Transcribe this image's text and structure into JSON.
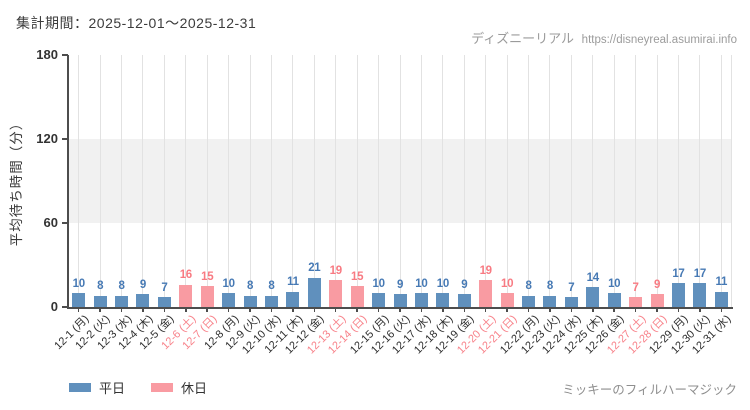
{
  "header": {
    "title": "集計期間：2025-12-01～2025-12-31",
    "watermark_site": "ディズニーリアル",
    "watermark_url": "https://disneyreal.asumirai.info"
  },
  "chart_data": {
    "type": "bar",
    "title": "",
    "xlabel": "",
    "ylabel": "平均待ち時間（分）",
    "ylim": [
      0,
      180
    ],
    "yticks": [
      0,
      60,
      120,
      180
    ],
    "shaded_band": [
      60,
      120
    ],
    "grid": "vertical-per-category",
    "legend_position": "bottom-left",
    "categories": [
      "12-1 (月)",
      "12-2 (火)",
      "12-3 (水)",
      "12-4 (木)",
      "12-5 (金)",
      "12-6 (土)",
      "12-7 (日)",
      "12-8 (月)",
      "12-9 (火)",
      "12-10 (水)",
      "12-11 (木)",
      "12-12 (金)",
      "12-13 (土)",
      "12-14 (日)",
      "12-15 (月)",
      "12-16 (火)",
      "12-17 (水)",
      "12-18 (木)",
      "12-19 (金)",
      "12-20 (土)",
      "12-21 (日)",
      "12-22 (月)",
      "12-23 (火)",
      "12-24 (水)",
      "12-25 (木)",
      "12-26 (金)",
      "12-27 (土)",
      "12-28 (日)",
      "12-29 (月)",
      "12-30 (火)",
      "12-31 (水)"
    ],
    "values": [
      10,
      8,
      8,
      9,
      7,
      16,
      15,
      10,
      8,
      8,
      11,
      21,
      19,
      15,
      10,
      9,
      10,
      10,
      9,
      19,
      10,
      8,
      8,
      7,
      14,
      10,
      7,
      9,
      17,
      17,
      11
    ],
    "day_types": [
      "weekday",
      "weekday",
      "weekday",
      "weekday",
      "weekday",
      "holiday",
      "holiday",
      "weekday",
      "weekday",
      "weekday",
      "weekday",
      "weekday",
      "holiday",
      "holiday",
      "weekday",
      "weekday",
      "weekday",
      "weekday",
      "weekday",
      "holiday",
      "holiday",
      "weekday",
      "weekday",
      "weekday",
      "weekday",
      "weekday",
      "holiday",
      "holiday",
      "weekday",
      "weekday",
      "weekday"
    ],
    "legend": [
      {
        "label": "平日",
        "type": "weekday"
      },
      {
        "label": "休日",
        "type": "holiday"
      }
    ],
    "colors": {
      "weekday_bar": "#6090bd",
      "weekday_value_label": "#4679b4",
      "holiday_bar": "#f99ba2",
      "holiday_value_label": "#f87a82",
      "band": "#f1f1f1",
      "gridline": "#e2e2e2",
      "axis": "#4d4d4d"
    }
  },
  "footer": {
    "attraction": "ミッキーのフィルハーマジック"
  }
}
